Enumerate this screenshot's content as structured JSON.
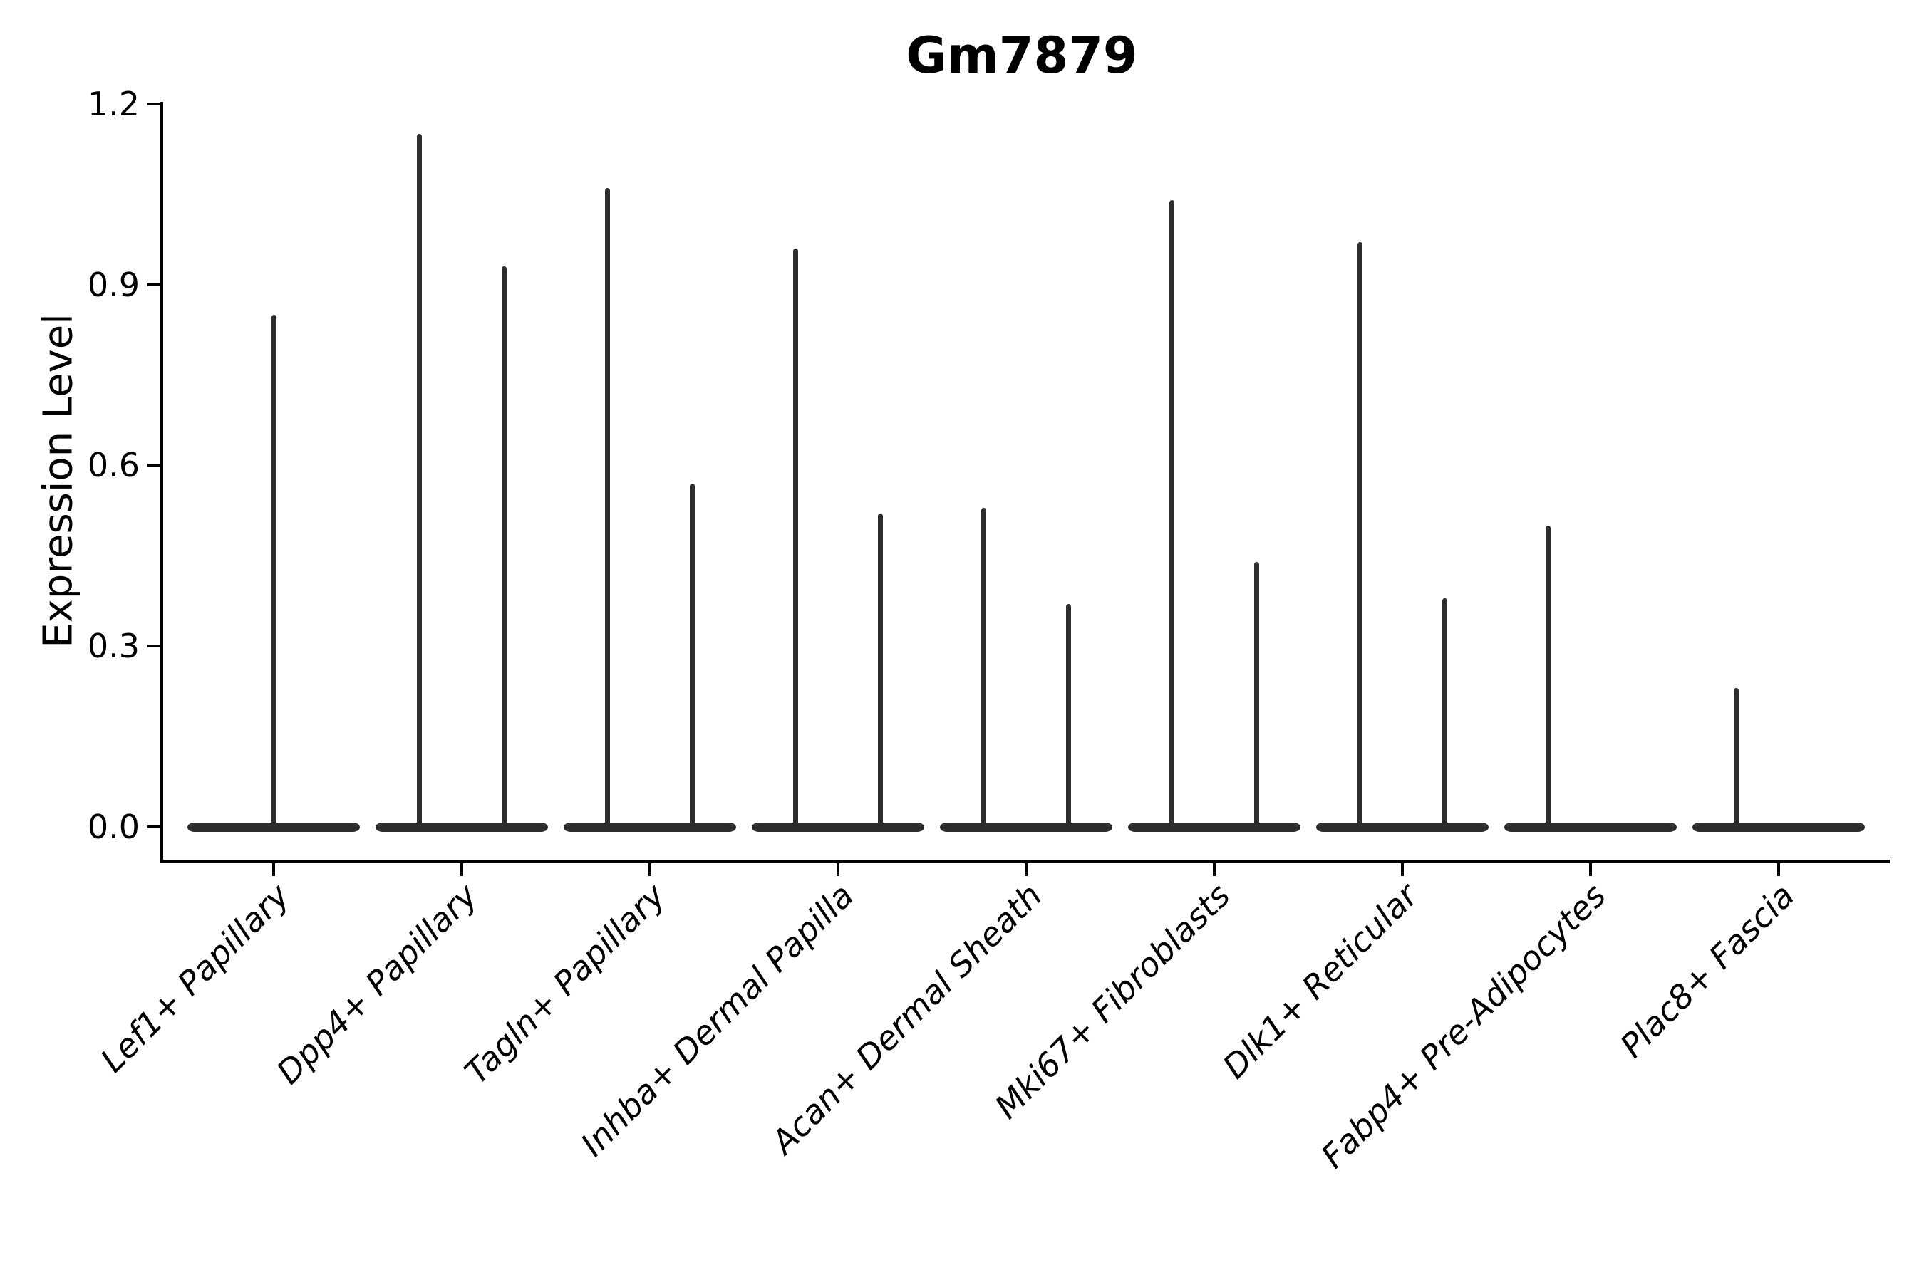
{
  "chart_data": {
    "type": "violin",
    "title": "Gm7879",
    "xlabel": "",
    "ylabel": "Expression Level",
    "ylim": [
      -0.06,
      1.2
    ],
    "yticks": [
      0.0,
      0.3,
      0.6,
      0.9,
      1.2
    ],
    "ytick_labels": [
      "0.0",
      "0.3",
      "0.6",
      "0.9",
      "1.2"
    ],
    "grid": false,
    "legend": null,
    "categories": [
      "Lef1+ Papillary",
      "Dpp4+ Papillary",
      "Tagln+ Papillary",
      "Inhba+ Dermal Papilla",
      "Acan+ Dermal Sheath",
      "Mki67+ Fibroblasts",
      "Dlk1+ Reticular",
      "Fabp4+ Pre-Adipocytes",
      "Plac8+ Fascia"
    ],
    "violins": [
      {
        "category": "Lef1+ Papillary",
        "base_value": 0.0,
        "spikes": [
          {
            "offset_frac": 0.0,
            "max_expression": 0.85
          }
        ]
      },
      {
        "category": "Dpp4+ Papillary",
        "base_value": 0.0,
        "spikes": [
          {
            "offset_frac": -0.227,
            "max_expression": 1.15
          },
          {
            "offset_frac": 0.227,
            "max_expression": 0.93
          }
        ]
      },
      {
        "category": "Tagln+ Papillary",
        "base_value": 0.0,
        "spikes": [
          {
            "offset_frac": -0.227,
            "max_expression": 1.06
          },
          {
            "offset_frac": 0.227,
            "max_expression": 0.57
          }
        ]
      },
      {
        "category": "Inhba+ Dermal Papilla",
        "base_value": 0.0,
        "spikes": [
          {
            "offset_frac": -0.227,
            "max_expression": 0.96
          },
          {
            "offset_frac": 0.227,
            "max_expression": 0.52
          }
        ]
      },
      {
        "category": "Acan+ Dermal Sheath",
        "base_value": 0.0,
        "spikes": [
          {
            "offset_frac": -0.227,
            "max_expression": 0.53
          },
          {
            "offset_frac": 0.227,
            "max_expression": 0.37
          }
        ]
      },
      {
        "category": "Mki67+ Fibroblasts",
        "base_value": 0.0,
        "spikes": [
          {
            "offset_frac": -0.227,
            "max_expression": 1.04
          },
          {
            "offset_frac": 0.227,
            "max_expression": 0.44
          }
        ]
      },
      {
        "category": "Dlk1+ Reticular",
        "base_value": 0.0,
        "spikes": [
          {
            "offset_frac": -0.227,
            "max_expression": 0.97
          },
          {
            "offset_frac": 0.227,
            "max_expression": 0.38
          }
        ]
      },
      {
        "category": "Fabp4+ Pre-Adipocytes",
        "base_value": 0.0,
        "spikes": [
          {
            "offset_frac": -0.227,
            "max_expression": 0.5
          }
        ]
      },
      {
        "category": "Plac8+ Fascia",
        "base_value": 0.0,
        "spikes": [
          {
            "offset_frac": -0.227,
            "max_expression": 0.23
          }
        ]
      }
    ],
    "style": {
      "violin_color": "#2d2d2d",
      "axis_color": "#000000",
      "text_color": "#000000",
      "background": "#ffffff",
      "x_label_rotation_deg": 45,
      "x_label_style": "italic",
      "title_weight": "bold"
    }
  }
}
